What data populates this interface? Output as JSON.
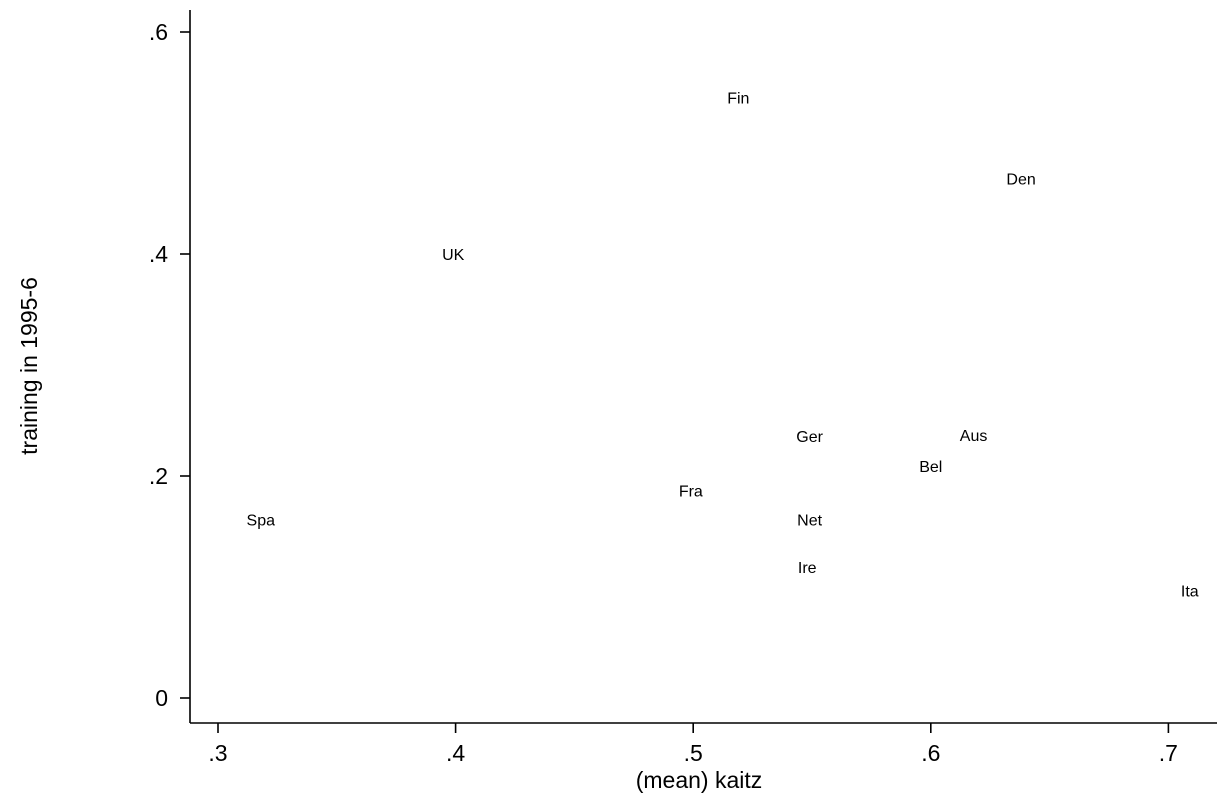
{
  "chart_data": {
    "type": "scatter",
    "marker": "label-only",
    "xlabel": "(mean) kaitz",
    "ylabel": "training in 1995-6",
    "xlim": [
      0.29,
      0.72
    ],
    "ylim": [
      -0.01,
      0.615
    ],
    "x_ticks": [
      {
        "value": 0.3,
        "label": ".3"
      },
      {
        "value": 0.4,
        "label": ".4"
      },
      {
        "value": 0.5,
        "label": ".5"
      },
      {
        "value": 0.6,
        "label": ".6"
      },
      {
        "value": 0.7,
        "label": ".7"
      }
    ],
    "y_ticks": [
      {
        "value": 0,
        "label": "0"
      },
      {
        "value": 0.2,
        "label": ".2"
      },
      {
        "value": 0.4,
        "label": ".4"
      },
      {
        "value": 0.6,
        "label": ".6"
      }
    ],
    "grid": false,
    "legend": "none",
    "points": [
      {
        "label": "Fin",
        "x": 0.519,
        "y": 0.541
      },
      {
        "label": "Den",
        "x": 0.638,
        "y": 0.468
      },
      {
        "label": "UK",
        "x": 0.399,
        "y": 0.4
      },
      {
        "label": "Ger",
        "x": 0.549,
        "y": 0.236
      },
      {
        "label": "Aus",
        "x": 0.618,
        "y": 0.237
      },
      {
        "label": "Bel",
        "x": 0.6,
        "y": 0.209
      },
      {
        "label": "Fra",
        "x": 0.499,
        "y": 0.187
      },
      {
        "label": "Spa",
        "x": 0.318,
        "y": 0.161
      },
      {
        "label": "Net",
        "x": 0.549,
        "y": 0.161
      },
      {
        "label": "Ire",
        "x": 0.548,
        "y": 0.118
      },
      {
        "label": "Ita",
        "x": 0.709,
        "y": 0.097
      }
    ]
  }
}
